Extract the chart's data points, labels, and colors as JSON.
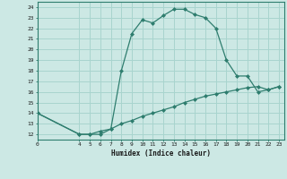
{
  "upper_x": [
    0,
    4,
    5,
    6,
    7,
    8,
    9,
    10,
    11,
    12,
    13,
    14,
    15,
    16,
    17,
    18,
    19,
    20,
    21,
    22,
    23
  ],
  "upper_y": [
    14,
    12,
    12,
    12,
    12.5,
    18,
    21.5,
    22.8,
    22.5,
    23.2,
    23.8,
    23.8,
    23.3,
    23,
    22,
    19,
    17.5,
    17.5,
    16,
    16.2,
    16.5
  ],
  "lower_x": [
    0,
    4,
    5,
    6,
    7,
    8,
    9,
    10,
    11,
    12,
    13,
    14,
    15,
    16,
    17,
    18,
    19,
    20,
    21,
    22,
    23
  ],
  "lower_y": [
    14,
    12,
    12,
    12.3,
    12.5,
    13.0,
    13.3,
    13.7,
    14.0,
    14.3,
    14.6,
    15.0,
    15.3,
    15.6,
    15.8,
    16.0,
    16.2,
    16.4,
    16.5,
    16.2,
    16.5
  ],
  "line_color": "#2e7d6e",
  "bg_color": "#cce8e4",
  "grid_color": "#a8d4ce",
  "xlabel": "Humidex (Indice chaleur)",
  "xlim": [
    0,
    23.5
  ],
  "ylim": [
    11.5,
    24.5
  ],
  "yticks": [
    12,
    13,
    14,
    15,
    16,
    17,
    18,
    19,
    20,
    21,
    22,
    23,
    24
  ],
  "xticks": [
    0,
    4,
    5,
    6,
    7,
    8,
    9,
    10,
    11,
    12,
    13,
    14,
    15,
    16,
    17,
    18,
    19,
    20,
    21,
    22,
    23
  ]
}
